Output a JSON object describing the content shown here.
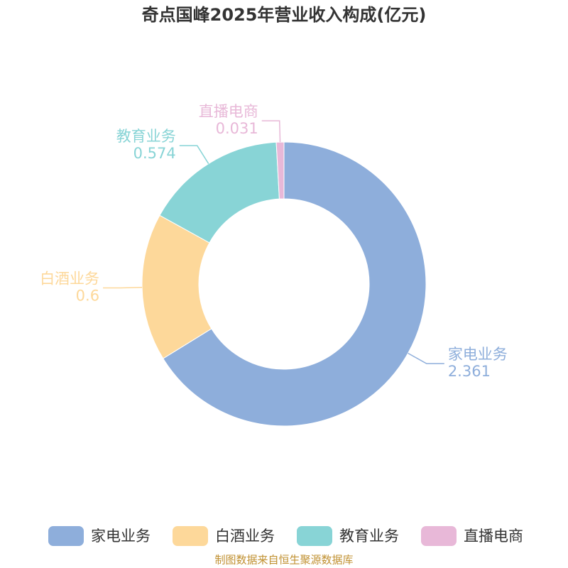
{
  "chart_data": {
    "type": "pie",
    "donut": true,
    "title": "奇点国峰2025年营业收入构成(亿元)",
    "categories": [
      "家电业务",
      "白酒业务",
      "教育业务",
      "直播电商"
    ],
    "values": [
      2.361,
      0.6,
      0.574,
      0.031
    ],
    "colors": [
      "#8eaedb",
      "#fdd89a",
      "#88d4d6",
      "#e8b8d8"
    ],
    "source": "制图数据来自恒生聚源数据库",
    "legend": "bottom"
  }
}
